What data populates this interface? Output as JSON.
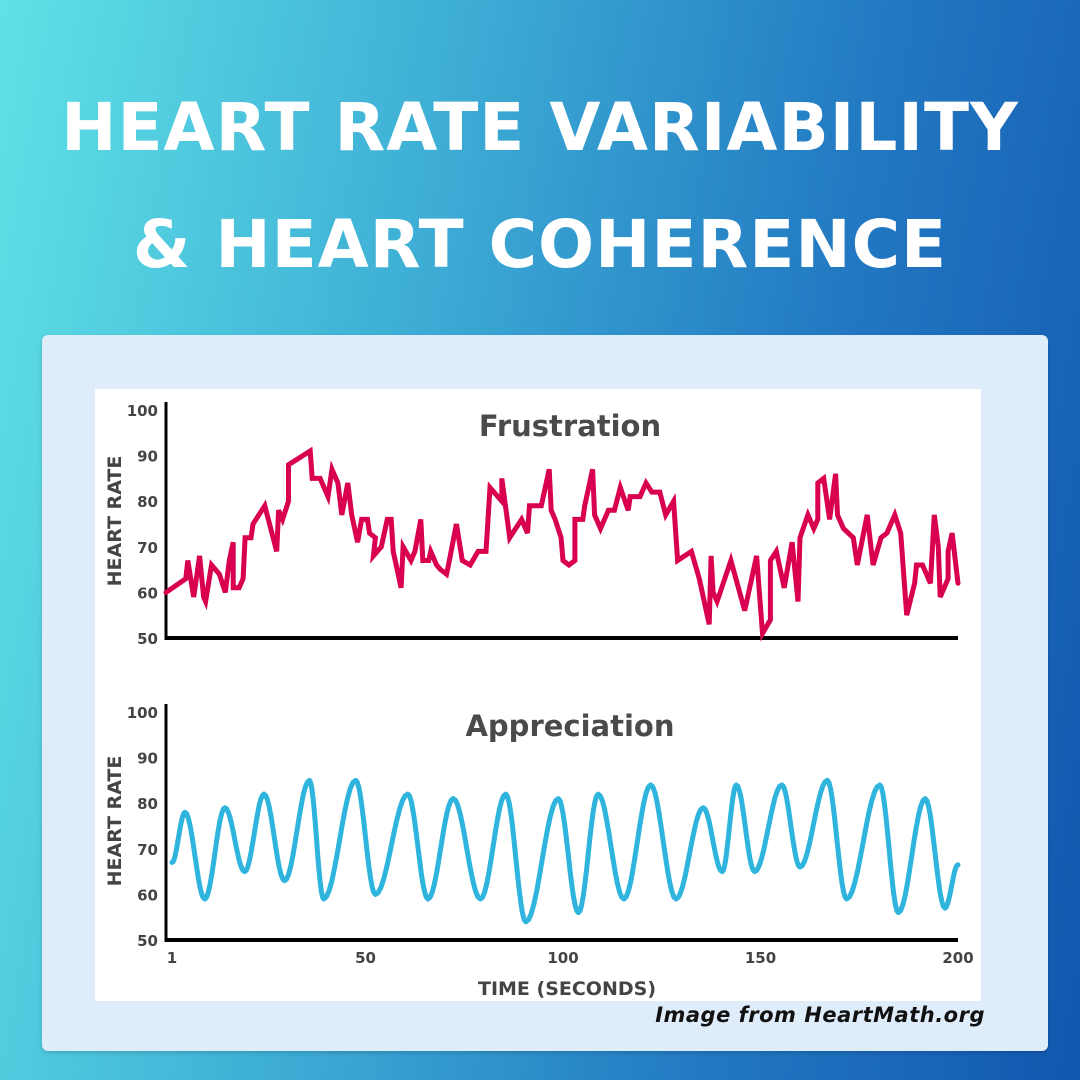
{
  "header": {
    "line1": "HEART RATE VARIABILITY",
    "line2": "& HEART COHERENCE"
  },
  "credit": "Image from HeartMath.org",
  "chart_data": [
    {
      "type": "line",
      "title": "Frustration",
      "xlabel": "",
      "ylabel": "HEART RATE",
      "xlim": [
        1,
        200
      ],
      "ylim": [
        50,
        100
      ],
      "yticks": [
        "100",
        "90",
        "80",
        "70",
        "60",
        "50"
      ],
      "color": "#d8004f",
      "grid": false,
      "points": [
        [
          1,
          60
        ],
        [
          4.5,
          63
        ],
        [
          5,
          67
        ],
        [
          6.5,
          59
        ],
        [
          8,
          68
        ],
        [
          9,
          59
        ],
        [
          9.5,
          58
        ],
        [
          11,
          66
        ],
        [
          13,
          64
        ],
        [
          14.5,
          60
        ],
        [
          15.5,
          67
        ],
        [
          16.5,
          71
        ],
        [
          16.5,
          61
        ],
        [
          18,
          61
        ],
        [
          19,
          63
        ],
        [
          19.5,
          72
        ],
        [
          21,
          72
        ],
        [
          21.5,
          75
        ],
        [
          24.5,
          79
        ],
        [
          27.5,
          69
        ],
        [
          28,
          78
        ],
        [
          29,
          76
        ],
        [
          30.5,
          80
        ],
        [
          30.5,
          88
        ],
        [
          36,
          91
        ],
        [
          36.5,
          85
        ],
        [
          38.5,
          85
        ],
        [
          40.5,
          81
        ],
        [
          41.5,
          87
        ],
        [
          43,
          84
        ],
        [
          44,
          77
        ],
        [
          45.5,
          84
        ],
        [
          46.5,
          77
        ],
        [
          48,
          71
        ],
        [
          49,
          76
        ],
        [
          50.5,
          76
        ],
        [
          51,
          73
        ],
        [
          52.5,
          72
        ],
        [
          52,
          68
        ],
        [
          54,
          70
        ],
        [
          55.5,
          76
        ],
        [
          56.5,
          76
        ],
        [
          57,
          69
        ],
        [
          59,
          61
        ],
        [
          59.5,
          70
        ],
        [
          61.5,
          67
        ],
        [
          62.5,
          69
        ],
        [
          64,
          76
        ],
        [
          64.5,
          67
        ],
        [
          66,
          67
        ],
        [
          66.5,
          69
        ],
        [
          68,
          66
        ],
        [
          69,
          65
        ],
        [
          70.5,
          64
        ],
        [
          71,
          66
        ],
        [
          73,
          75
        ],
        [
          74.5,
          67
        ],
        [
          76.5,
          66
        ],
        [
          78.5,
          69
        ],
        [
          80.5,
          69
        ],
        [
          81.5,
          83
        ],
        [
          84.5,
          80
        ],
        [
          84.5,
          85
        ],
        [
          86.5,
          72
        ],
        [
          89.5,
          76
        ],
        [
          91,
          73
        ],
        [
          91.5,
          79
        ],
        [
          94.5,
          79
        ],
        [
          96.5,
          87
        ],
        [
          97,
          78
        ],
        [
          98,
          76
        ],
        [
          99.5,
          72
        ],
        [
          100,
          67
        ],
        [
          101.5,
          66
        ],
        [
          103,
          67
        ],
        [
          103,
          76
        ],
        [
          105,
          76
        ],
        [
          105.5,
          79
        ],
        [
          107.5,
          87
        ],
        [
          108,
          77
        ],
        [
          109.5,
          74
        ],
        [
          111.5,
          78
        ],
        [
          113,
          78
        ],
        [
          114.5,
          83
        ],
        [
          116.5,
          78
        ],
        [
          117,
          81
        ],
        [
          119.5,
          81
        ],
        [
          121,
          84
        ],
        [
          122.5,
          82
        ],
        [
          124.5,
          82
        ],
        [
          126,
          77
        ],
        [
          128,
          80
        ],
        [
          129,
          67
        ],
        [
          132.5,
          69
        ],
        [
          134.5,
          63
        ],
        [
          137,
          53
        ],
        [
          137.5,
          68
        ],
        [
          138,
          60
        ],
        [
          139,
          58
        ],
        [
          142.5,
          67
        ],
        [
          146,
          56
        ],
        [
          149,
          68
        ],
        [
          150.5,
          51
        ],
        [
          152.5,
          54
        ],
        [
          152.5,
          67
        ],
        [
          154,
          69
        ],
        [
          156,
          61
        ],
        [
          158,
          71
        ],
        [
          159.5,
          58
        ],
        [
          160,
          72
        ],
        [
          162,
          77
        ],
        [
          163.5,
          74
        ],
        [
          164.5,
          76
        ],
        [
          164.5,
          84
        ],
        [
          166,
          85
        ],
        [
          167.5,
          76
        ],
        [
          169,
          86
        ],
        [
          169.5,
          77
        ],
        [
          171,
          74
        ],
        [
          173.5,
          72
        ],
        [
          174.5,
          66
        ],
        [
          177,
          77
        ],
        [
          178.5,
          66
        ],
        [
          180.5,
          72
        ],
        [
          182,
          73
        ],
        [
          184,
          77
        ],
        [
          185.5,
          73
        ],
        [
          187,
          55
        ],
        [
          189,
          62
        ],
        [
          189.5,
          66
        ],
        [
          191,
          66
        ],
        [
          193,
          62
        ],
        [
          194,
          77
        ],
        [
          195,
          70
        ],
        [
          195.5,
          59
        ],
        [
          197.5,
          63
        ],
        [
          197.5,
          69
        ],
        [
          198.5,
          73
        ],
        [
          200,
          62
        ]
      ]
    },
    {
      "type": "line",
      "title": "Appreciation",
      "xlabel": "TIME (SECONDS)",
      "ylabel": "HEART RATE",
      "xlim": [
        1,
        200
      ],
      "ylim": [
        50,
        100
      ],
      "xticks": [
        "1",
        "50",
        "100",
        "150",
        "200"
      ],
      "yticks": [
        "100",
        "90",
        "80",
        "70",
        "60",
        "50"
      ],
      "color": "#2fb4de",
      "grid": false,
      "points": [
        [
          1,
          67
        ],
        [
          4.3,
          78
        ],
        [
          9.3,
          59
        ],
        [
          14.4,
          79
        ],
        [
          19.4,
          65
        ],
        [
          24.3,
          82
        ],
        [
          29.5,
          63
        ],
        [
          35.8,
          85
        ],
        [
          39.4,
          59
        ],
        [
          47.5,
          85
        ],
        [
          52.5,
          60
        ],
        [
          60.7,
          82
        ],
        [
          65.8,
          59
        ],
        [
          72.2,
          81
        ],
        [
          79.1,
          59
        ],
        [
          85.5,
          82
        ],
        [
          90.6,
          54
        ],
        [
          98.8,
          81
        ],
        [
          103.9,
          56
        ],
        [
          108.9,
          82
        ],
        [
          115.4,
          59
        ],
        [
          122.2,
          84
        ],
        [
          128.6,
          59
        ],
        [
          135.5,
          79
        ],
        [
          140.3,
          65
        ],
        [
          143.9,
          84
        ],
        [
          148.5,
          65
        ],
        [
          155.4,
          84
        ],
        [
          160,
          66
        ],
        [
          166.9,
          85
        ],
        [
          171.8,
          59
        ],
        [
          180.2,
          84
        ],
        [
          184.9,
          56
        ],
        [
          191.7,
          81
        ],
        [
          196.7,
          57
        ],
        [
          200,
          66.5
        ]
      ]
    }
  ]
}
